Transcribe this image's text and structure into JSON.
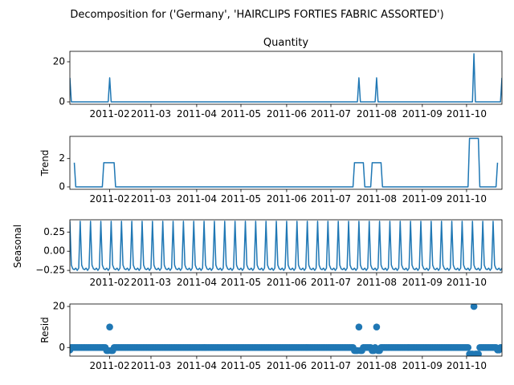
{
  "chart_data": {
    "type": "line",
    "title": "Decomposition for ('Germany', 'HAIRCLIPS FORTIES FABRIC ASSORTED')",
    "x_ticks": [
      "2011-02",
      "2011-03",
      "2011-04",
      "2011-05",
      "2011-06",
      "2011-07",
      "2011-08",
      "2011-09",
      "2011-10"
    ],
    "x_tick_dates": [
      "2011-02-01",
      "2011-03-01",
      "2011-04-01",
      "2011-05-01",
      "2011-06-01",
      "2011-07-01",
      "2011-08-01",
      "2011-09-01",
      "2011-10-01"
    ],
    "x_range": [
      "2011-01-05",
      "2011-10-25"
    ],
    "series_color": "#1f77b4",
    "panels": [
      {
        "name": "observed",
        "title": "Quantity",
        "ylabel": "",
        "style": "line",
        "ylim": [
          -1.2,
          25.2
        ],
        "yticks": [
          0,
          20
        ],
        "baseline": 0,
        "events": [
          {
            "date": "2011-01-05",
            "value": 12
          },
          {
            "date": "2011-02-01",
            "value": 12
          },
          {
            "date": "2011-07-20",
            "value": 12
          },
          {
            "date": "2011-08-01",
            "value": 12
          },
          {
            "date": "2011-10-06",
            "value": 24
          },
          {
            "date": "2011-10-25",
            "value": 12
          }
        ]
      },
      {
        "name": "trend",
        "title": "",
        "ylabel": "Trend",
        "style": "line",
        "ylim": [
          -0.17,
          3.57
        ],
        "yticks": [
          0,
          2
        ],
        "points": [
          [
            "2011-01-08",
            1.71
          ],
          [
            "2011-01-09",
            0
          ],
          [
            "2011-01-27",
            0
          ],
          [
            "2011-01-28",
            1.71
          ],
          [
            "2011-02-04",
            1.71
          ],
          [
            "2011-02-05",
            0
          ],
          [
            "2011-07-16",
            0
          ],
          [
            "2011-07-17",
            1.71
          ],
          [
            "2011-07-23",
            1.71
          ],
          [
            "2011-07-24",
            0
          ],
          [
            "2011-07-28",
            0
          ],
          [
            "2011-07-29",
            1.71
          ],
          [
            "2011-08-04",
            1.71
          ],
          [
            "2011-08-05",
            0
          ],
          [
            "2011-10-02",
            0
          ],
          [
            "2011-10-03",
            3.43
          ],
          [
            "2011-10-09",
            3.43
          ],
          [
            "2011-10-10",
            0
          ],
          [
            "2011-10-21",
            0
          ],
          [
            "2011-10-22",
            1.71
          ]
        ]
      },
      {
        "name": "seasonal",
        "title": "",
        "ylabel": "Seasonal",
        "style": "line",
        "ylim": [
          -0.28,
          0.41
        ],
        "yticks": [
          0.25,
          0.0,
          -0.25
        ],
        "ytick_labels": [
          "0.25",
          "0.00",
          "−0.25"
        ],
        "period_days": 7,
        "pattern": [
          0.39,
          -0.18,
          -0.23,
          -0.24,
          -0.22,
          -0.25,
          -0.22
        ],
        "start": "2011-01-05",
        "end": "2011-10-25"
      },
      {
        "name": "resid",
        "title": "",
        "ylabel": "Resid",
        "style": "scatter",
        "ylim": [
          -4.2,
          21.2
        ],
        "yticks": [
          0,
          20
        ],
        "start": "2011-01-05",
        "end": "2011-10-25",
        "default_value": 0,
        "overrides": [
          {
            "date": "2011-01-05",
            "value": -1.2
          },
          {
            "date": "2011-01-30",
            "value": -1.5
          },
          {
            "date": "2011-01-31",
            "value": -1.5
          },
          {
            "date": "2011-02-01",
            "value": 10
          },
          {
            "date": "2011-02-02",
            "value": -1.5
          },
          {
            "date": "2011-02-03",
            "value": -1.5
          },
          {
            "date": "2011-07-17",
            "value": -1.5
          },
          {
            "date": "2011-07-18",
            "value": -1.5
          },
          {
            "date": "2011-07-19",
            "value": -1.5
          },
          {
            "date": "2011-07-20",
            "value": 10
          },
          {
            "date": "2011-07-21",
            "value": -1.5
          },
          {
            "date": "2011-07-22",
            "value": -1.5
          },
          {
            "date": "2011-07-29",
            "value": -1.5
          },
          {
            "date": "2011-07-30",
            "value": -1.5
          },
          {
            "date": "2011-08-01",
            "value": 10
          },
          {
            "date": "2011-08-02",
            "value": -1.5
          },
          {
            "date": "2011-08-03",
            "value": -1.5
          },
          {
            "date": "2011-10-03",
            "value": -3.2
          },
          {
            "date": "2011-10-04",
            "value": -3.2
          },
          {
            "date": "2011-10-05",
            "value": -3.2
          },
          {
            "date": "2011-10-06",
            "value": 20
          },
          {
            "date": "2011-10-07",
            "value": -3.2
          },
          {
            "date": "2011-10-08",
            "value": -3.2
          },
          {
            "date": "2011-10-09",
            "value": -3.2
          },
          {
            "date": "2011-10-22",
            "value": -1.2
          },
          {
            "date": "2011-10-23",
            "value": -1.2
          }
        ]
      }
    ]
  }
}
